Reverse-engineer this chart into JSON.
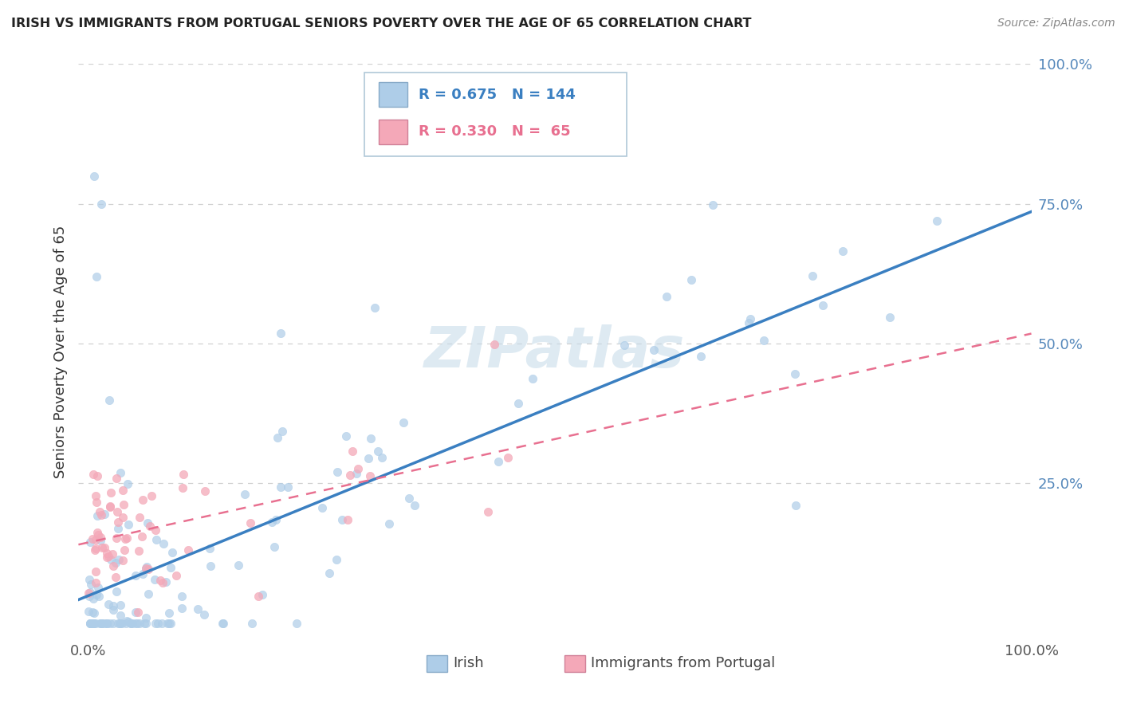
{
  "title": "IRISH VS IMMIGRANTS FROM PORTUGAL SENIORS POVERTY OVER THE AGE OF 65 CORRELATION CHART",
  "source": "Source: ZipAtlas.com",
  "ylabel": "Seniors Poverty Over the Age of 65",
  "legend_irish": "Irish",
  "legend_portugal": "Immigrants from Portugal",
  "irish_R": 0.675,
  "irish_N": 144,
  "portugal_R": 0.33,
  "portugal_N": 65,
  "irish_color": "#aecde8",
  "portugal_color": "#f4a8b8",
  "irish_line_color": "#3a7fc1",
  "portugal_line_color": "#e87090",
  "background_color": "#ffffff",
  "watermark_color": "#d8e8f0",
  "grid_color": "#d0d0d0",
  "right_tick_color": "#5588bb",
  "title_color": "#222222",
  "source_color": "#888888",
  "ylabel_color": "#333333"
}
